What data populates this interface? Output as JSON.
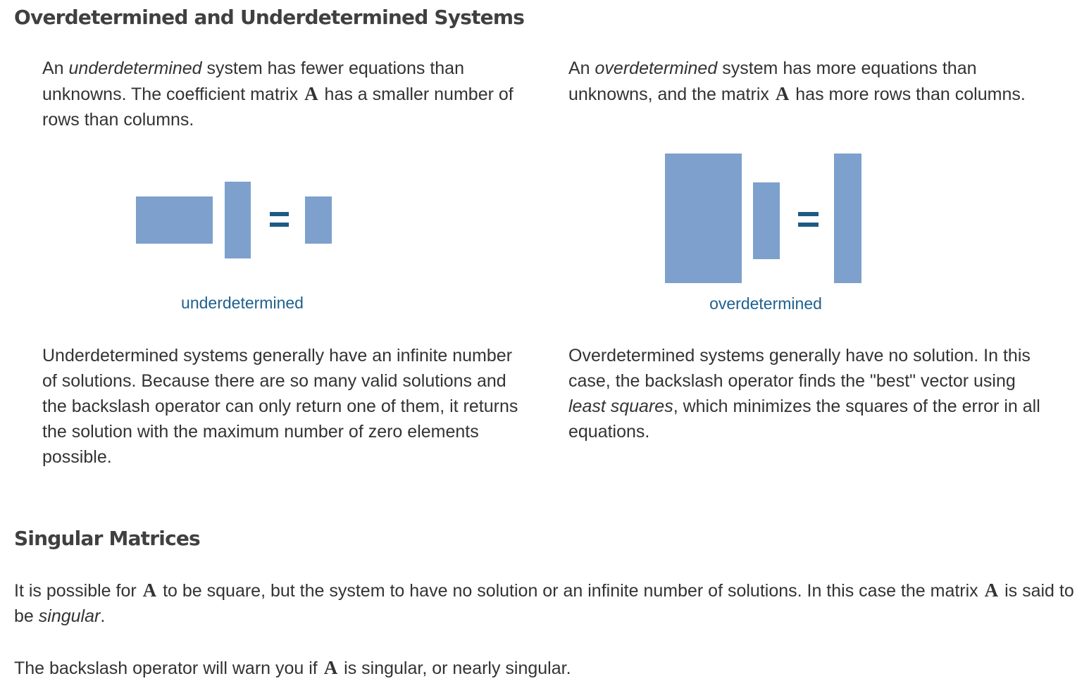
{
  "section1": {
    "heading": "Overdetermined and Underdetermined Systems",
    "under": {
      "intro_pre": "An ",
      "intro_em": "underdetermined",
      "intro_mid": " system has fewer equations than unknowns. The coefficient matrix ",
      "intro_math": "A",
      "intro_post": " has a smaller number of rows than columns.",
      "caption": "underdetermined",
      "body": "Underdetermined systems generally have an infinite number of solutions. Because there are so many valid solutions and the backslash operator can only return one of them, it returns the solution with the maximum number of zero elements possible."
    },
    "over": {
      "intro_pre": "An ",
      "intro_em": "overdetermined",
      "intro_mid": " system has more equations than unknowns, and the matrix ",
      "intro_math": "A",
      "intro_post": " has more rows than columns.",
      "caption": "overdetermined",
      "body_pre": "Overdetermined systems generally have no solution. In this case, the backslash operator finds the \"best\" vector using ",
      "body_em": "least squares",
      "body_post": ", which minimizes the squares of the error in all equations."
    }
  },
  "section2": {
    "heading": "Singular Matrices",
    "p1_pre": "It is possible for ",
    "p1_math1": "A",
    "p1_mid": " to be square, but the system to have no solution or an infinite number of solutions. In this case the matrix ",
    "p1_math2": "A",
    "p1_post": " is said to be ",
    "p1_em": "singular",
    "p1_end": ".",
    "p2_pre": "The backslash operator will warn you if ",
    "p2_math": "A",
    "p2_post": " is singular, or nearly singular."
  },
  "colors": {
    "matrix_fill": "#7da0cd",
    "equals_sign": "#1e5a86",
    "caption_text": "#1f6090",
    "heading_text": "#404040",
    "body_text": "#333333"
  }
}
